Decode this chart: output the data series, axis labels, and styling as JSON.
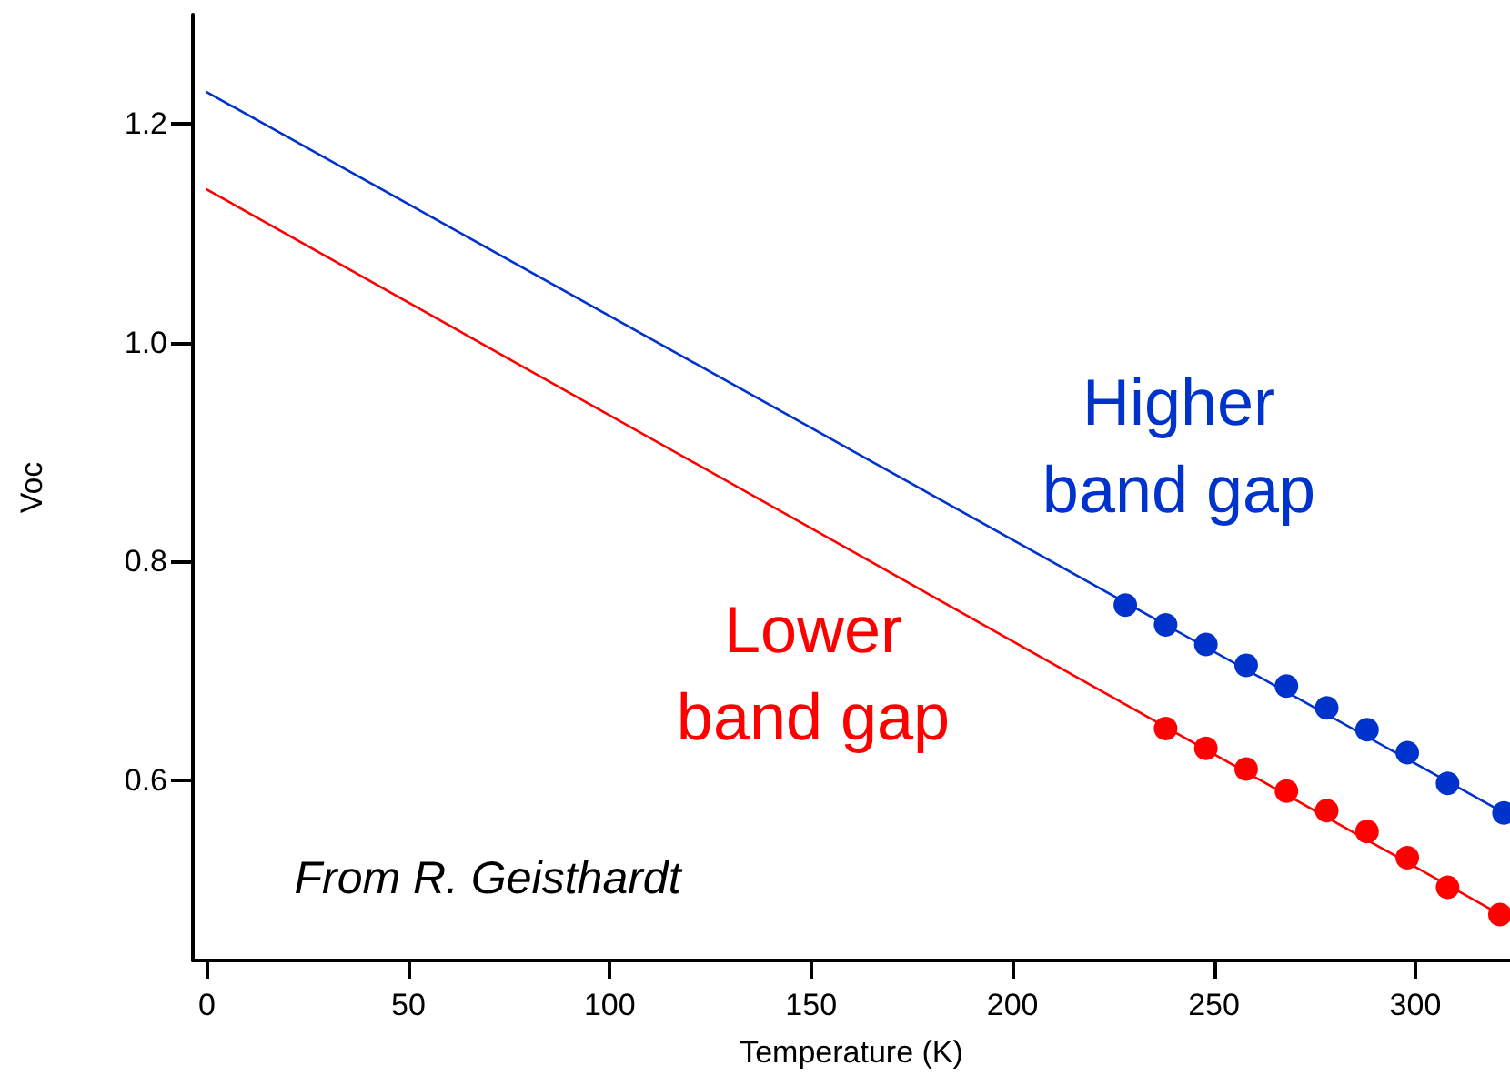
{
  "chart_data": {
    "type": "scatter",
    "xlabel": "Temperature (K)",
    "ylabel": "Voc",
    "xlim": [
      -3.5,
      323.5
    ],
    "ylim": [
      0.435,
      1.3
    ],
    "xticks": [
      0,
      50,
      100,
      150,
      200,
      250,
      300
    ],
    "yticks": [
      0.6,
      0.8,
      {
        "value": 1,
        "label": "1.0"
      },
      1.2
    ],
    "grid": false,
    "series": [
      {
        "type": "line",
        "color": "#0033cc",
        "marker": "none",
        "x": [
          0,
          323
        ],
        "values": [
          1.229,
          0.568
        ]
      },
      {
        "type": "line",
        "color": "#ff0000",
        "marker": "none",
        "x": [
          0,
          323
        ],
        "values": [
          1.14,
          0.473
        ]
      },
      {
        "color": "#0033cc",
        "marker": "circle",
        "x": [
          228,
          238,
          248,
          258,
          268,
          278,
          288,
          298,
          308,
          322
        ],
        "values": [
          0.76,
          0.742,
          0.724,
          0.705,
          0.686,
          0.666,
          0.646,
          0.625,
          0.597,
          0.57
        ]
      },
      {
        "color": "#ff0000",
        "marker": "circle",
        "x": [
          238,
          248,
          258,
          268,
          278,
          288,
          298,
          308,
          321
        ],
        "values": [
          0.647,
          0.629,
          0.61,
          0.59,
          0.572,
          0.553,
          0.529,
          0.502,
          0.477
        ]
      }
    ],
    "annotations": [
      "Higher band gap",
      "Lower band gap",
      "From R. Geisthardt"
    ]
  }
}
